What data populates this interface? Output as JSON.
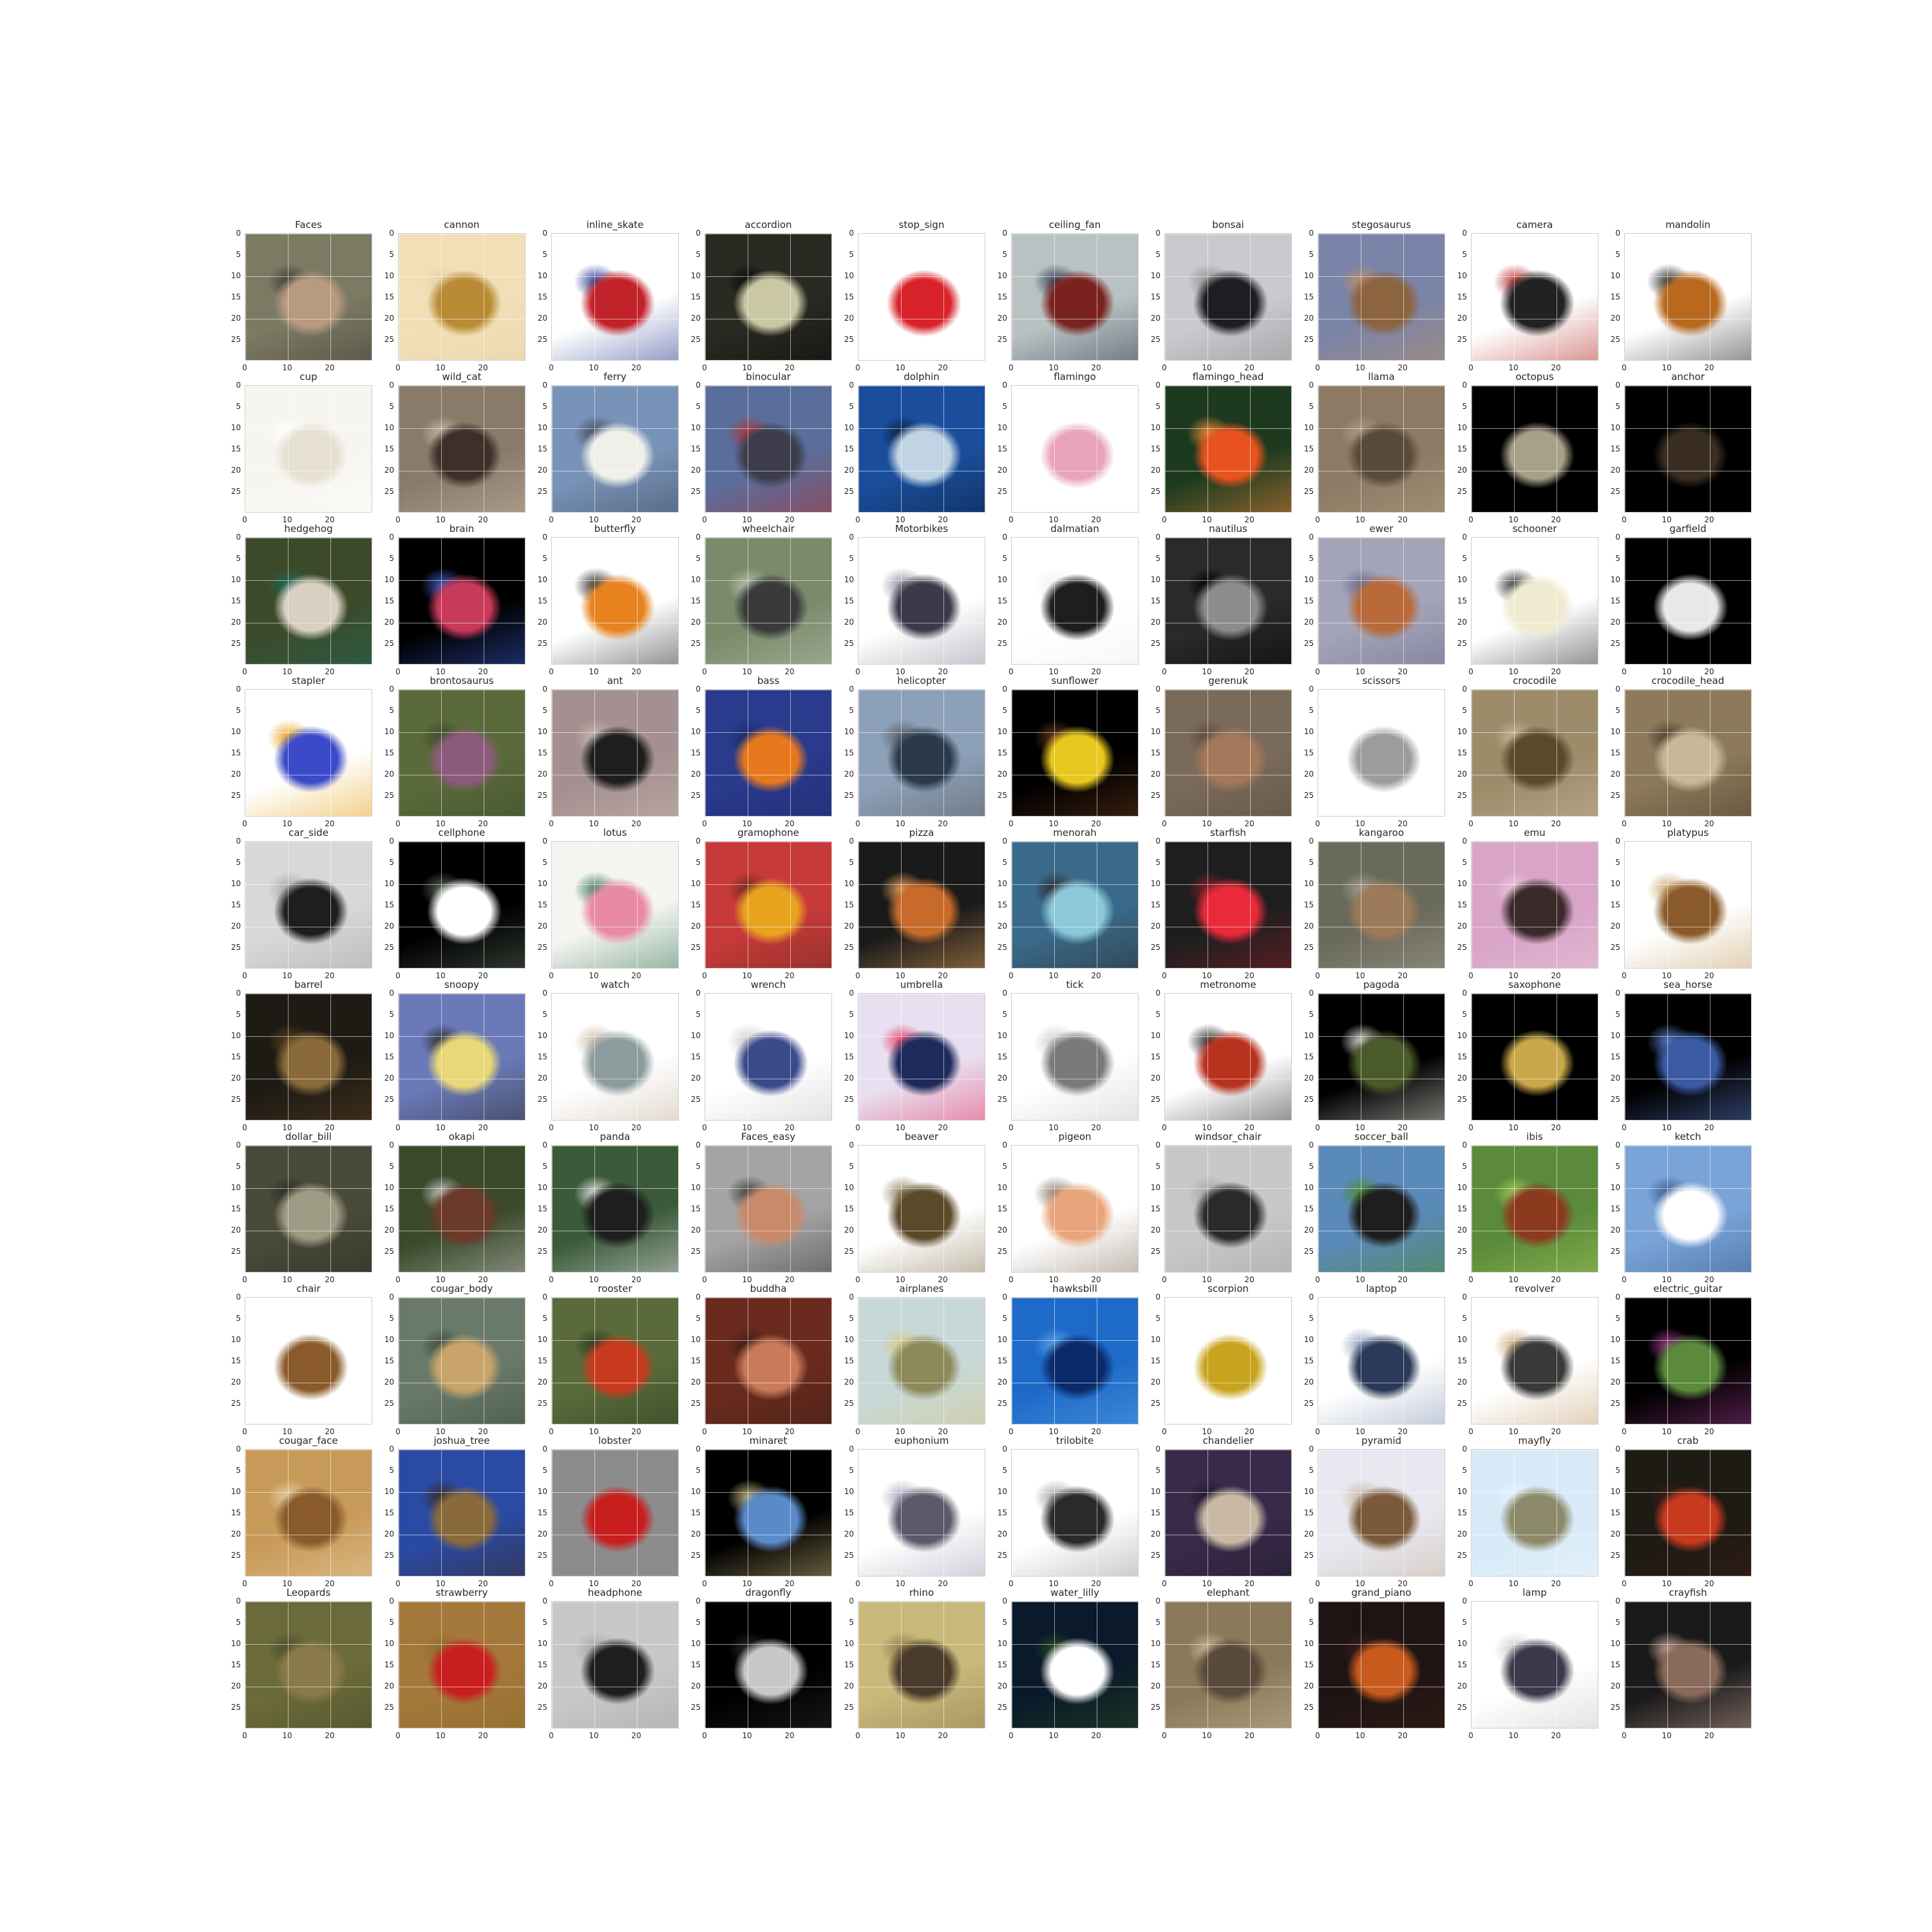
{
  "figure": {
    "columns": 10,
    "rows": 10,
    "ytick_labels": [
      "0",
      "5",
      "10",
      "15",
      "20",
      "25"
    ],
    "xtick_labels": [
      "0",
      "10",
      "20"
    ],
    "panels": [
      {
        "title": "Faces",
        "colors": [
          "#7d7a63",
          "#b89a80",
          "#3d3a34"
        ]
      },
      {
        "title": "cannon",
        "colors": [
          "#f2dfb8",
          "#b98b34",
          "#e7d3aa"
        ]
      },
      {
        "title": "inline_skate",
        "colors": [
          "#ffffff",
          "#c2222a",
          "#2c3f8f"
        ]
      },
      {
        "title": "accordion",
        "colors": [
          "#2a2a22",
          "#c9c7a4",
          "#080808"
        ]
      },
      {
        "title": "stop_sign",
        "colors": [
          "#ffffff",
          "#d9232a",
          "#ffffff"
        ]
      },
      {
        "title": "ceiling_fan",
        "colors": [
          "#b9c2c2",
          "#7a2220",
          "#2e3a52"
        ]
      },
      {
        "title": "bonsai",
        "colors": [
          "#c9c9cf",
          "#1e1e22",
          "#8c8c8c"
        ]
      },
      {
        "title": "stegosaurus",
        "colors": [
          "#7a84a8",
          "#8c6440",
          "#b88f6a"
        ]
      },
      {
        "title": "camera",
        "colors": [
          "#ffffff",
          "#222222",
          "#b5302a"
        ]
      },
      {
        "title": "mandolin",
        "colors": [
          "#ffffff",
          "#b8691e",
          "#2a2a2a"
        ]
      },
      {
        "title": "cup",
        "colors": [
          "#f7f5f0",
          "#e6e0d2",
          "#ffffff"
        ]
      },
      {
        "title": "wild_cat",
        "colors": [
          "#8a7a6a",
          "#3c3028",
          "#c8b8a4"
        ]
      },
      {
        "title": "ferry",
        "colors": [
          "#7893b8",
          "#f0f0ea",
          "#3c4858"
        ]
      },
      {
        "title": "binocular",
        "colors": [
          "#5a6e9c",
          "#3c3c4a",
          "#b03030"
        ]
      },
      {
        "title": "dolphin",
        "colors": [
          "#1a4e9c",
          "#c0d4e4",
          "#0a1e3c"
        ]
      },
      {
        "title": "flamingo",
        "colors": [
          "#ffffff",
          "#e8a4b8",
          "#ffffff"
        ]
      },
      {
        "title": "flamingo_head",
        "colors": [
          "#1e3a1e",
          "#e8521e",
          "#f08a3c"
        ]
      },
      {
        "title": "llama",
        "colors": [
          "#8c7a64",
          "#5a4a3a",
          "#b0a084"
        ]
      },
      {
        "title": "octopus",
        "colors": [
          "#000000",
          "#a8a088",
          "#000000"
        ]
      },
      {
        "title": "anchor",
        "colors": [
          "#000000",
          "#3a2e22",
          "#000000"
        ]
      },
      {
        "title": "hedgehog",
        "colors": [
          "#3c4a2a",
          "#d8d0c0",
          "#1e6a5a"
        ]
      },
      {
        "title": "brain",
        "colors": [
          "#000000",
          "#c83a5a",
          "#3a5ac8"
        ]
      },
      {
        "title": "butterfly",
        "colors": [
          "#ffffff",
          "#e8821e",
          "#2a2a2a"
        ]
      },
      {
        "title": "wheelchair",
        "colors": [
          "#7a8a6a",
          "#3a3a3a",
          "#b8c4b0"
        ]
      },
      {
        "title": "Motorbikes",
        "colors": [
          "#ffffff",
          "#3a3a4a",
          "#8c8c9c"
        ]
      },
      {
        "title": "dalmatian",
        "colors": [
          "#ffffff",
          "#1e1e1e",
          "#f0f0f0"
        ]
      },
      {
        "title": "nautilus",
        "colors": [
          "#2a2a2a",
          "#8c8c8c",
          "#000000"
        ]
      },
      {
        "title": "ewer",
        "colors": [
          "#a4a4b8",
          "#b86a3a",
          "#6a6a8c"
        ]
      },
      {
        "title": "schooner",
        "colors": [
          "#ffffff",
          "#f0ead0",
          "#2a2a2a"
        ]
      },
      {
        "title": "garfield",
        "colors": [
          "#000000",
          "#e8e8e8",
          "#000000"
        ]
      },
      {
        "title": "stapler",
        "colors": [
          "#ffffff",
          "#3a4ac8",
          "#e8a41e"
        ]
      },
      {
        "title": "brontosaurus",
        "colors": [
          "#5a6a3a",
          "#8c5a7a",
          "#3a4a2a"
        ]
      },
      {
        "title": "ant",
        "colors": [
          "#a49090",
          "#1e1e1e",
          "#c8b8b0"
        ]
      },
      {
        "title": "bass",
        "colors": [
          "#2a3a8c",
          "#e8781e",
          "#1a2a6a"
        ]
      },
      {
        "title": "helicopter",
        "colors": [
          "#8ca0b8",
          "#2a3a4a",
          "#5a5a5a"
        ]
      },
      {
        "title": "sunflower",
        "colors": [
          "#000000",
          "#e8c81e",
          "#6a3a1e"
        ]
      },
      {
        "title": "gerenuk",
        "colors": [
          "#7a6a5a",
          "#a4785a",
          "#5a4a3a"
        ]
      },
      {
        "title": "scissors",
        "colors": [
          "#ffffff",
          "#9c9c9c",
          "#ffffff"
        ]
      },
      {
        "title": "crocodile",
        "colors": [
          "#9c8c6a",
          "#5a4a2a",
          "#c8b898"
        ]
      },
      {
        "title": "crocodile_head",
        "colors": [
          "#8c7a5a",
          "#c8b898",
          "#4a3a2a"
        ]
      },
      {
        "title": "car_side",
        "colors": [
          "#d8d8d8",
          "#1e1e1e",
          "#a4a4a4"
        ]
      },
      {
        "title": "cellphone",
        "colors": [
          "#000000",
          "#ffffff",
          "#5a6a5a"
        ]
      },
      {
        "title": "lotus",
        "colors": [
          "#f4f4f0",
          "#e88aa4",
          "#3a7a5a"
        ]
      },
      {
        "title": "gramophone",
        "colors": [
          "#c83a3a",
          "#e8a41e",
          "#6a2a1e"
        ]
      },
      {
        "title": "pizza",
        "colors": [
          "#1a1a1a",
          "#c86a2a",
          "#e8a45a"
        ]
      },
      {
        "title": "menorah",
        "colors": [
          "#3a6a8a",
          "#8cc8d8",
          "#2a2a2a"
        ]
      },
      {
        "title": "starfish",
        "colors": [
          "#1e1e1e",
          "#e82a3a",
          "#8a1e2a"
        ]
      },
      {
        "title": "kangaroo",
        "colors": [
          "#6a6a5a",
          "#9c7a5a",
          "#a4a090"
        ]
      },
      {
        "title": "emu",
        "colors": [
          "#d8a4c8",
          "#3a2a2a",
          "#e8c8d8"
        ]
      },
      {
        "title": "platypus",
        "colors": [
          "#ffffff",
          "#8a5a2a",
          "#c8a46a"
        ]
      },
      {
        "title": "barrel",
        "colors": [
          "#1e1a14",
          "#8a6a3a",
          "#5a4020"
        ]
      },
      {
        "title": "snoopy",
        "colors": [
          "#6a7ab8",
          "#e8d878",
          "#2a2a2a"
        ]
      },
      {
        "title": "watch",
        "colors": [
          "#ffffff",
          "#8c9c9c",
          "#c8b8a4"
        ]
      },
      {
        "title": "wrench",
        "colors": [
          "#ffffff",
          "#3a4a8a",
          "#c8c8c8"
        ]
      },
      {
        "title": "umbrella",
        "colors": [
          "#e8e0f0",
          "#1e2a5a",
          "#e83a6a"
        ]
      },
      {
        "title": "tick",
        "colors": [
          "#ffffff",
          "#7a7a7a",
          "#c8c8c8"
        ]
      },
      {
        "title": "metronome",
        "colors": [
          "#ffffff",
          "#b8321e",
          "#2a2a2a"
        ]
      },
      {
        "title": "pagoda",
        "colors": [
          "#000000",
          "#4a5a2a",
          "#e8e8e0"
        ]
      },
      {
        "title": "saxophone",
        "colors": [
          "#000000",
          "#c8a84a",
          "#000000"
        ]
      },
      {
        "title": "sea_horse",
        "colors": [
          "#000000",
          "#3a5aa4",
          "#5a7ac8"
        ]
      },
      {
        "title": "dollar_bill",
        "colors": [
          "#4a4a3a",
          "#9c9c84",
          "#2a2a22"
        ]
      },
      {
        "title": "okapi",
        "colors": [
          "#3a4a2a",
          "#6a3a2a",
          "#c8c8c8"
        ]
      },
      {
        "title": "panda",
        "colors": [
          "#3a5a3a",
          "#1e1e1e",
          "#e8e8e8"
        ]
      },
      {
        "title": "Faces_easy",
        "colors": [
          "#a4a4a4",
          "#c88a6a",
          "#3a3a3a"
        ]
      },
      {
        "title": "beaver",
        "colors": [
          "#ffffff",
          "#5a4a2a",
          "#8c7a5a"
        ]
      },
      {
        "title": "pigeon",
        "colors": [
          "#ffffff",
          "#e8a47a",
          "#8c7a6a"
        ]
      },
      {
        "title": "windsor_chair",
        "colors": [
          "#c8c8c8",
          "#2a2a2a",
          "#a4a4a4"
        ]
      },
      {
        "title": "soccer_ball",
        "colors": [
          "#5a8ab8",
          "#1e1e1e",
          "#4a8a2a"
        ]
      },
      {
        "title": "ibis",
        "colors": [
          "#5a8a3a",
          "#8c3a1e",
          "#a4c85a"
        ]
      },
      {
        "title": "ketch",
        "colors": [
          "#7aa4d8",
          "#ffffff",
          "#3a5a8c"
        ]
      },
      {
        "title": "chair",
        "colors": [
          "#ffffff",
          "#8a5a2a",
          "#ffffff"
        ]
      },
      {
        "title": "cougar_body",
        "colors": [
          "#6a7a6a",
          "#c8a46a",
          "#3a4a3a"
        ]
      },
      {
        "title": "rooster",
        "colors": [
          "#5a6a3a",
          "#c83a1e",
          "#2a3a1e"
        ]
      },
      {
        "title": "buddha",
        "colors": [
          "#6a2a1e",
          "#c87a5a",
          "#3a1e14"
        ]
      },
      {
        "title": "airplanes",
        "colors": [
          "#c8d8d8",
          "#8c8a5a",
          "#d8c88a"
        ]
      },
      {
        "title": "hawksbill",
        "colors": [
          "#1e6ac8",
          "#0a2a6a",
          "#5aa4e8"
        ]
      },
      {
        "title": "scorpion",
        "colors": [
          "#ffffff",
          "#c8a41e",
          "#ffffff"
        ]
      },
      {
        "title": "laptop",
        "colors": [
          "#ffffff",
          "#2a3a5a",
          "#8c9cb8"
        ]
      },
      {
        "title": "revolver",
        "colors": [
          "#ffffff",
          "#3a3a3a",
          "#c8a47a"
        ]
      },
      {
        "title": "electric_guitar",
        "colors": [
          "#000000",
          "#5a8a3a",
          "#9c3a8a"
        ]
      },
      {
        "title": "cougar_face",
        "colors": [
          "#c89a5a",
          "#8a5a2a",
          "#e8d0a4"
        ]
      },
      {
        "title": "joshua_tree",
        "colors": [
          "#2a4aa4",
          "#8a6a3a",
          "#3a2a1e"
        ]
      },
      {
        "title": "lobster",
        "colors": [
          "#8c8c8c",
          "#c81e1e",
          "#8c8c8c"
        ]
      },
      {
        "title": "minaret",
        "colors": [
          "#000000",
          "#5a8ac8",
          "#c8b87a"
        ]
      },
      {
        "title": "euphonium",
        "colors": [
          "#ffffff",
          "#5a5a6a",
          "#a4a4b8"
        ]
      },
      {
        "title": "trilobite",
        "colors": [
          "#ffffff",
          "#2a2a2a",
          "#9c9c9c"
        ]
      },
      {
        "title": "chandelier",
        "colors": [
          "#3a2a4a",
          "#c8b8a4",
          "#1e1a2a"
        ]
      },
      {
        "title": "pyramid",
        "colors": [
          "#e8e8f0",
          "#7a5a3a",
          "#c8b8a4"
        ]
      },
      {
        "title": "mayfly",
        "colors": [
          "#d8eaf8",
          "#8c8a6a",
          "#e8f4fc"
        ]
      },
      {
        "title": "crab",
        "colors": [
          "#1e1a14",
          "#c83a1e",
          "#3a1e14"
        ]
      },
      {
        "title": "Leopards",
        "colors": [
          "#6a6a3a",
          "#8a7a4a",
          "#4a4a2a"
        ]
      },
      {
        "title": "strawberry",
        "colors": [
          "#a4783a",
          "#c81e1e",
          "#8a6a2a"
        ]
      },
      {
        "title": "headphone",
        "colors": [
          "#c8c8c8",
          "#1e1e1e",
          "#a4a4a4"
        ]
      },
      {
        "title": "dragonfly",
        "colors": [
          "#000000",
          "#c8c8c8",
          "#2a2a2a"
        ]
      },
      {
        "title": "rhino",
        "colors": [
          "#c8b87a",
          "#4a3a2a",
          "#8c7a4a"
        ]
      },
      {
        "title": "water_lilly",
        "colors": [
          "#0a1a2a",
          "#ffffff",
          "#2a4a1e"
        ]
      },
      {
        "title": "elephant",
        "colors": [
          "#8a7a5a",
          "#5a4a3a",
          "#c8b89a"
        ]
      },
      {
        "title": "grand_piano",
        "colors": [
          "#1e1414",
          "#c85a1e",
          "#3a1e14"
        ]
      },
      {
        "title": "lamp",
        "colors": [
          "#ffffff",
          "#3a3a4a",
          "#c8c8c8"
        ]
      },
      {
        "title": "crayfish",
        "colors": [
          "#1a1a1a",
          "#8a6a5a",
          "#c8a49a"
        ]
      }
    ]
  }
}
